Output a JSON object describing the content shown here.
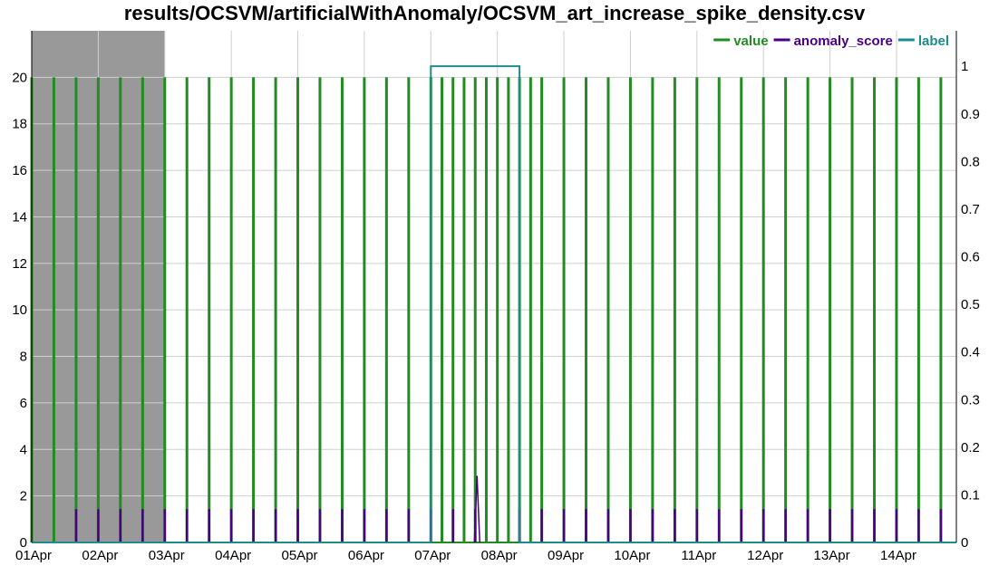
{
  "chart_data": {
    "type": "line",
    "title": "results/OCSVM/artificialWithAnomaly/OCSVM_art_increase_spike_density.csv",
    "xlabel": "",
    "ylabel": "",
    "x_tick_labels": [
      "01Apr",
      "02Apr",
      "03Apr",
      "04Apr",
      "05Apr",
      "06Apr",
      "07Apr",
      "08Apr",
      "09Apr",
      "10Apr",
      "11Apr",
      "12Apr",
      "13Apr",
      "14Apr"
    ],
    "xlim_days": [
      0,
      14
    ],
    "ylim_left": [
      0,
      22
    ],
    "ylim_right": [
      0,
      1.0745
    ],
    "y_left_ticks": [
      0,
      2,
      4,
      6,
      8,
      10,
      12,
      14,
      16,
      18,
      20
    ],
    "y_right_ticks": [
      0,
      0.1,
      0.2,
      0.3,
      0.4,
      0.5,
      0.6,
      0.7,
      0.8,
      0.9,
      1
    ],
    "grid": true,
    "legend_position": "top-right",
    "shaded_region": {
      "x_start_day": 0,
      "x_end_day": 2.0,
      "color": "#999999"
    },
    "series": [
      {
        "name": "value",
        "axis": "left",
        "color": "#228b22",
        "baseline": 0,
        "spike_value": 20,
        "spike_days": [
          0.0,
          0.333,
          0.667,
          1.0,
          1.333,
          1.667,
          2.0,
          2.333,
          2.667,
          3.0,
          3.333,
          3.667,
          4.0,
          4.333,
          4.667,
          5.0,
          5.333,
          5.667,
          6.0,
          6.333,
          6.667,
          7.0,
          7.333,
          7.667,
          8.0,
          8.333,
          8.667,
          9.0,
          9.333,
          9.667,
          10.0,
          10.333,
          10.667,
          11.0,
          11.333,
          11.667,
          12.0,
          12.333,
          12.667,
          13.0,
          13.333,
          13.667
        ],
        "extra_spike_days": [
          6.0,
          6.333,
          6.667,
          7.0,
          7.333
        ]
      },
      {
        "name": "anomaly_score",
        "axis": "right",
        "color": "#4b0082",
        "baseline": 0,
        "spike_value": 0.07,
        "spike_days": [
          0.667,
          1.0,
          1.333,
          1.667,
          2.0,
          2.333,
          2.667,
          3.0,
          3.333,
          3.667,
          4.0,
          4.333,
          4.667,
          5.0,
          5.333,
          5.667,
          6.0,
          6.333,
          6.667,
          7.333,
          7.667,
          8.0,
          8.333,
          8.667,
          9.0,
          9.333,
          9.667,
          10.0,
          10.333,
          10.667,
          11.0,
          11.333,
          11.667,
          12.0,
          12.333,
          12.667,
          13.0,
          13.333,
          13.667
        ],
        "peaks": [
          {
            "day": 6.667,
            "value": 0.14
          }
        ]
      },
      {
        "name": "label",
        "axis": "right",
        "color": "#1e8c8c",
        "windows": [
          {
            "start_day": 6.0,
            "end_day": 7.333,
            "value": 1
          }
        ]
      }
    ]
  }
}
